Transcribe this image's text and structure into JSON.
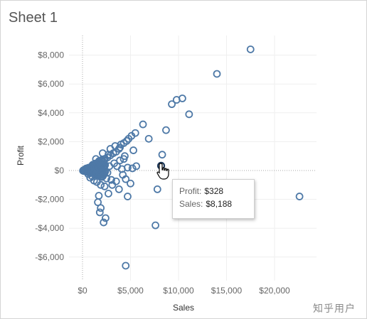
{
  "sheet": {
    "title": "Sheet 1"
  },
  "tooltip": {
    "profit_label": "Profit:",
    "profit_value": "$328",
    "sales_label": "Sales:",
    "sales_value": "$8,188"
  },
  "watermark": "知乎用户",
  "chart_data": {
    "type": "scatter",
    "xlabel": "Sales",
    "ylabel": "Profit",
    "xlim": [
      -700,
      23500
    ],
    "ylim": [
      -7700,
      8800
    ],
    "x_ticks": [
      0,
      5000,
      10000,
      15000,
      20000
    ],
    "x_tick_labels": [
      "$0",
      "$5,000",
      "$10,000",
      "$15,000",
      "$20,000"
    ],
    "y_ticks": [
      8000,
      6000,
      4000,
      2000,
      0,
      -2000,
      -4000,
      -6000
    ],
    "y_tick_labels": [
      "$8,000",
      "$6,000",
      "$4,000",
      "$2,000",
      "$0",
      "-$2,000",
      "-$4,000",
      "-$6,000"
    ],
    "grid": true,
    "marker": "hollow-circle",
    "color": "#4e79a7",
    "highlighted_point": {
      "x": 8188,
      "y": 328
    },
    "points": [
      [
        17500,
        8400
      ],
      [
        14000,
        6700
      ],
      [
        10400,
        5000
      ],
      [
        9800,
        4900
      ],
      [
        9300,
        4600
      ],
      [
        11100,
        3900
      ],
      [
        6300,
        3200
      ],
      [
        8700,
        2800
      ],
      [
        6900,
        2200
      ],
      [
        5500,
        2600
      ],
      [
        5100,
        2400
      ],
      [
        4800,
        2200
      ],
      [
        4600,
        2050
      ],
      [
        4300,
        1900
      ],
      [
        4000,
        1800
      ],
      [
        5300,
        1400
      ],
      [
        8300,
        1100
      ],
      [
        3800,
        1500
      ],
      [
        3500,
        1300
      ],
      [
        3200,
        1200
      ],
      [
        2900,
        1050
      ],
      [
        2600,
        900
      ],
      [
        2300,
        800
      ],
      [
        2000,
        700
      ],
      [
        1800,
        600
      ],
      [
        1600,
        500
      ],
      [
        1400,
        420
      ],
      [
        1200,
        340
      ],
      [
        1000,
        270
      ],
      [
        800,
        210
      ],
      [
        600,
        150
      ],
      [
        400,
        100
      ],
      [
        200,
        50
      ],
      [
        100,
        20
      ],
      [
        50,
        -10
      ],
      [
        300,
        -60
      ],
      [
        700,
        -120
      ],
      [
        1100,
        -200
      ],
      [
        1500,
        -300
      ],
      [
        2000,
        -450
      ],
      [
        2500,
        -550
      ],
      [
        3000,
        -650
      ],
      [
        3500,
        -750
      ],
      [
        4200,
        -300
      ],
      [
        4700,
        200
      ],
      [
        5200,
        150
      ],
      [
        5600,
        300
      ],
      [
        4400,
        1000
      ],
      [
        3900,
        700
      ],
      [
        3300,
        500
      ],
      [
        2800,
        300
      ],
      [
        2200,
        100
      ],
      [
        1700,
        -50
      ],
      [
        1300,
        -100
      ],
      [
        900,
        -30
      ],
      [
        600,
        30
      ],
      [
        350,
        0
      ],
      [
        150,
        -30
      ],
      [
        2600,
        -150
      ],
      [
        3100,
        -1000
      ],
      [
        4500,
        -600
      ],
      [
        5000,
        -900
      ],
      [
        1900,
        -1000
      ],
      [
        1500,
        -800
      ],
      [
        1200,
        -700
      ],
      [
        800,
        -500
      ],
      [
        3800,
        -1300
      ],
      [
        2700,
        -1600
      ],
      [
        1700,
        -1750
      ],
      [
        2300,
        -1100
      ],
      [
        4700,
        -1800
      ],
      [
        7800,
        -1300
      ],
      [
        22600,
        -1800
      ],
      [
        1600,
        -2200
      ],
      [
        1900,
        -2600
      ],
      [
        1800,
        -2900
      ],
      [
        2400,
        -3300
      ],
      [
        2200,
        -3600
      ],
      [
        7600,
        -3800
      ],
      [
        4500,
        -6600
      ],
      [
        3600,
        300
      ],
      [
        4100,
        100
      ],
      [
        2900,
        1500
      ],
      [
        3400,
        1700
      ],
      [
        3900,
        1600
      ],
      [
        4300,
        800
      ],
      [
        1400,
        800
      ],
      [
        2100,
        1200
      ],
      [
        2700,
        1100
      ],
      [
        1000,
        -400
      ],
      [
        600,
        -250
      ],
      [
        8188,
        328
      ]
    ]
  }
}
